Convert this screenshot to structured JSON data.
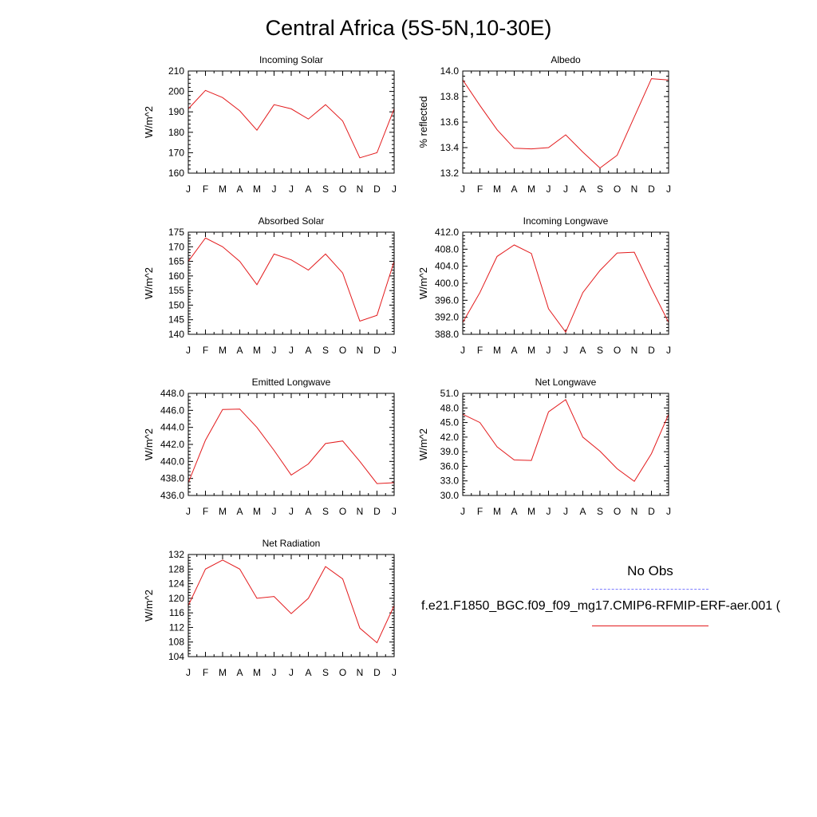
{
  "title": "Central Africa (5S-5N,10-30E)",
  "legend": {
    "obs_label": "No Obs",
    "model_label": "f.e21.F1850_BGC.f09_f09_mg17.CMIP6-RFMIP-ERF-aer.001 (",
    "obs_color": "#7d7dff",
    "model_color": "#e31a1c"
  },
  "chart_data": [
    {
      "type": "line",
      "title": "Incoming Solar",
      "xlabel": "",
      "ylabel": "W/m^2",
      "categories": [
        "J",
        "F",
        "M",
        "A",
        "M",
        "J",
        "J",
        "A",
        "S",
        "O",
        "N",
        "D",
        "J"
      ],
      "ylim": [
        160,
        210
      ],
      "yticks": [
        "160",
        "170",
        "180",
        "190",
        "200",
        "210"
      ],
      "series": [
        {
          "values": [
            191.5,
            200.5,
            197,
            190.5,
            181,
            193.5,
            191.5,
            186.5,
            193.5,
            185.5,
            167.5,
            170,
            191.5
          ]
        }
      ]
    },
    {
      "type": "line",
      "title": "Albedo",
      "xlabel": "",
      "ylabel": "% reflected",
      "categories": [
        "J",
        "F",
        "M",
        "A",
        "M",
        "J",
        "J",
        "A",
        "S",
        "O",
        "N",
        "D",
        "J"
      ],
      "ylim": [
        13.2,
        14.0
      ],
      "yticks": [
        "13.2",
        "13.4",
        "13.6",
        "13.8",
        "14.0"
      ],
      "series": [
        {
          "values": [
            13.93,
            13.73,
            13.54,
            13.395,
            13.39,
            13.4,
            13.5,
            13.365,
            13.24,
            13.34,
            13.64,
            13.94,
            13.93
          ]
        }
      ]
    },
    {
      "type": "line",
      "title": "Absorbed Solar",
      "xlabel": "",
      "ylabel": "W/m^2",
      "categories": [
        "J",
        "F",
        "M",
        "A",
        "M",
        "J",
        "J",
        "A",
        "S",
        "O",
        "N",
        "D",
        "J"
      ],
      "ylim": [
        140,
        175
      ],
      "yticks": [
        "140",
        "145",
        "150",
        "155",
        "160",
        "165",
        "170",
        "175"
      ],
      "series": [
        {
          "values": [
            165,
            173,
            170,
            165,
            157,
            167.5,
            165.5,
            162,
            167.5,
            161,
            144.5,
            146.5,
            165
          ]
        }
      ]
    },
    {
      "type": "line",
      "title": "Incoming Longwave",
      "xlabel": "",
      "ylabel": "W/m^2",
      "categories": [
        "J",
        "F",
        "M",
        "A",
        "M",
        "J",
        "J",
        "A",
        "S",
        "O",
        "N",
        "D",
        "J"
      ],
      "ylim": [
        388,
        412
      ],
      "yticks": [
        "388.0",
        "392.0",
        "396.0",
        "400.0",
        "404.0",
        "408.0",
        "412.0"
      ],
      "series": [
        {
          "values": [
            390.8,
            397.8,
            406.3,
            409,
            407,
            394,
            388.5,
            397.8,
            403,
            407.1,
            407.3,
            398.8,
            390.8
          ]
        }
      ]
    },
    {
      "type": "line",
      "title": "Emitted Longwave",
      "xlabel": "",
      "ylabel": "W/m^2",
      "categories": [
        "J",
        "F",
        "M",
        "A",
        "M",
        "J",
        "J",
        "A",
        "S",
        "O",
        "N",
        "D",
        "J"
      ],
      "ylim": [
        436,
        448
      ],
      "yticks": [
        "436.0",
        "438.0",
        "440.0",
        "442.0",
        "444.0",
        "446.0",
        "448.0"
      ],
      "series": [
        {
          "values": [
            437.5,
            442.5,
            446.1,
            446.15,
            444,
            441.3,
            438.4,
            439.7,
            442.1,
            442.4,
            440,
            437.4,
            437.5
          ]
        }
      ]
    },
    {
      "type": "line",
      "title": "Net Longwave",
      "xlabel": "",
      "ylabel": "W/m^2",
      "categories": [
        "J",
        "F",
        "M",
        "A",
        "M",
        "J",
        "J",
        "A",
        "S",
        "O",
        "N",
        "D",
        "J"
      ],
      "ylim": [
        30,
        51
      ],
      "yticks": [
        "30.0",
        "33.0",
        "36.0",
        "39.0",
        "42.0",
        "45.0",
        "48.0",
        "51.0"
      ],
      "series": [
        {
          "values": [
            46.7,
            45,
            40,
            37.3,
            37.2,
            47.2,
            49.7,
            42,
            39.1,
            35.5,
            32.9,
            38.6,
            46.7
          ]
        }
      ]
    },
    {
      "type": "line",
      "title": "Net Radiation",
      "xlabel": "",
      "ylabel": "W/m^2",
      "categories": [
        "J",
        "F",
        "M",
        "A",
        "M",
        "J",
        "J",
        "A",
        "S",
        "O",
        "N",
        "D",
        "J"
      ],
      "ylim": [
        104,
        132
      ],
      "yticks": [
        "104",
        "108",
        "112",
        "116",
        "120",
        "124",
        "128",
        "132"
      ],
      "series": [
        {
          "values": [
            118,
            128,
            130.5,
            128,
            120,
            120.5,
            115.8,
            120,
            128.7,
            125.3,
            111.8,
            107.8,
            118
          ]
        }
      ]
    }
  ]
}
